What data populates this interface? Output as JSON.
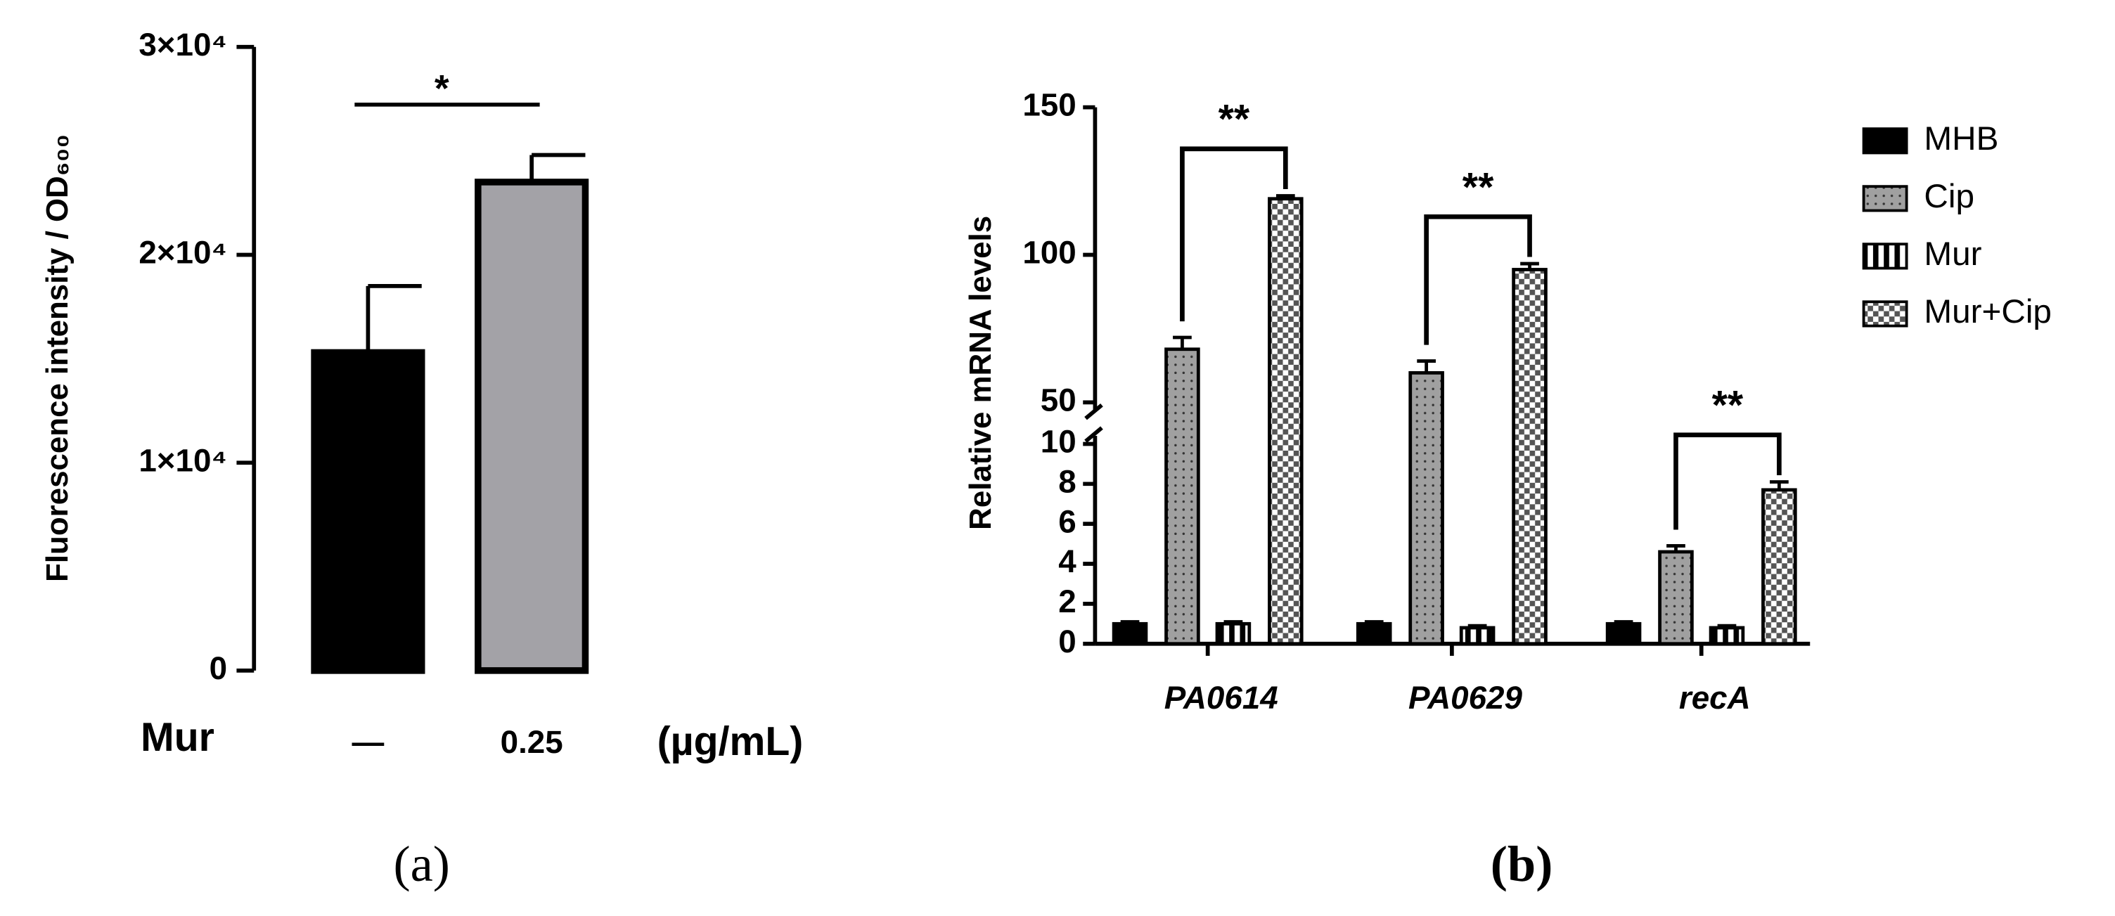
{
  "chart_data": [
    {
      "type": "bar",
      "panel_label": "(a)",
      "y_label": "Fluorescence intensity / OD₆₀₀",
      "x_label": "Mur",
      "x_unit": "(µg/mL)",
      "categories": [
        "—",
        "0.25"
      ],
      "values": [
        15300,
        23500
      ],
      "errors": [
        3200,
        1300
      ],
      "colors": [
        "#000000",
        "#a3a2a7"
      ],
      "ylim": [
        0,
        30000
      ],
      "yticks": [
        0,
        {
          "value": 10000,
          "label": "1×10⁴"
        },
        {
          "value": 20000,
          "label": "2×10⁴"
        },
        {
          "value": 30000,
          "label": "3×10⁴"
        }
      ],
      "annotations": [
        "*"
      ]
    },
    {
      "type": "grouped_bar",
      "panel_label": "(b)",
      "y_label": "Relative mRNA levels",
      "categories": [
        "PA0614",
        "PA0629",
        "recA"
      ],
      "series": [
        {
          "name": "MHB",
          "color": "#000000",
          "pattern": "solid",
          "values": [
            1,
            1,
            1
          ],
          "errors": [
            0.1,
            0.1,
            0.1
          ]
        },
        {
          "name": "Cip",
          "color": "#a0a0a0",
          "pattern": "dots",
          "values": [
            68,
            60,
            4.6
          ],
          "errors": [
            4,
            4,
            0.3
          ]
        },
        {
          "name": "Mur",
          "color": "#ffffff",
          "pattern": "stripes",
          "values": [
            1,
            0.8,
            0.8
          ],
          "errors": [
            0.1,
            0.1,
            0.1
          ]
        },
        {
          "name": "Mur+Cip",
          "color": "#888888",
          "pattern": "checker",
          "values": [
            119,
            95,
            7.7
          ],
          "errors": [
            1,
            2,
            0.4
          ]
        }
      ],
      "ylim": [
        0,
        150
      ],
      "y_break": [
        10,
        50
      ],
      "yticks": [
        0,
        2,
        4,
        6,
        8,
        10,
        50,
        100,
        150
      ],
      "annotations": [
        "**",
        "**",
        "**"
      ]
    }
  ]
}
